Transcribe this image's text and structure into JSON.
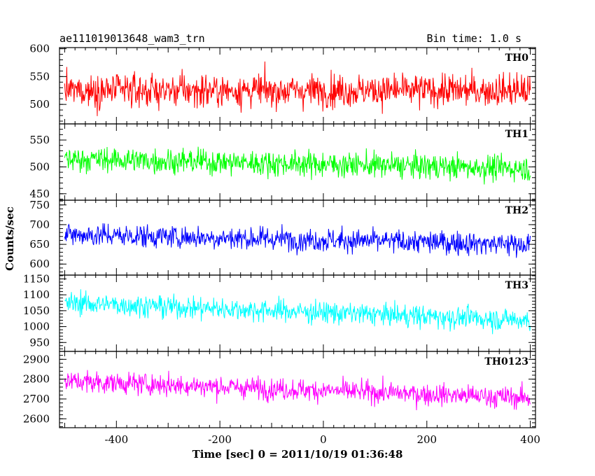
{
  "header": {
    "title": "ae111019013648_wam3_trn",
    "bin_time": "Bin time: 1.0 s"
  },
  "chart_data": {
    "type": "line",
    "xlabel": "Time [sec] 0 = 2011/10/19 01:36:48",
    "ylabel": "Counts/sec",
    "xlim": [
      -510,
      410
    ],
    "xticks": [
      -400,
      -200,
      0,
      200,
      400
    ],
    "x_start": -500,
    "x_end": 400,
    "bin_seconds": 1.0,
    "panels": [
      {
        "name": "TH0",
        "color": "#ff0000",
        "ylim": [
          465,
          602
        ],
        "yticks": [
          500,
          550,
          600
        ],
        "trend": [
          [
            -500,
            525
          ],
          [
            400,
            525
          ]
        ],
        "amplitude": 38
      },
      {
        "name": "TH1",
        "color": "#00ff00",
        "ylim": [
          438,
          580
        ],
        "yticks": [
          450,
          500,
          550
        ],
        "trend": [
          [
            -500,
            515
          ],
          [
            400,
            497
          ]
        ],
        "amplitude": 30
      },
      {
        "name": "TH2",
        "color": "#0000ff",
        "ylim": [
          572,
          762
        ],
        "yticks": [
          600,
          650,
          700,
          750
        ],
        "trend": [
          [
            -500,
            675
          ],
          [
            400,
            650
          ]
        ],
        "amplitude": 38
      },
      {
        "name": "TH3",
        "color": "#00ffff",
        "ylim": [
          922,
          1162
        ],
        "yticks": [
          950,
          1000,
          1050,
          1100,
          1150
        ],
        "trend": [
          [
            -500,
            1075
          ],
          [
            400,
            1020
          ]
        ],
        "amplitude": 45
      },
      {
        "name": "TH0123",
        "color": "#ff00ff",
        "ylim": [
          2555,
          2940
        ],
        "yticks": [
          2600,
          2700,
          2800,
          2900
        ],
        "trend": [
          [
            -500,
            2790
          ],
          [
            400,
            2705
          ]
        ],
        "amplitude": 70
      }
    ]
  }
}
